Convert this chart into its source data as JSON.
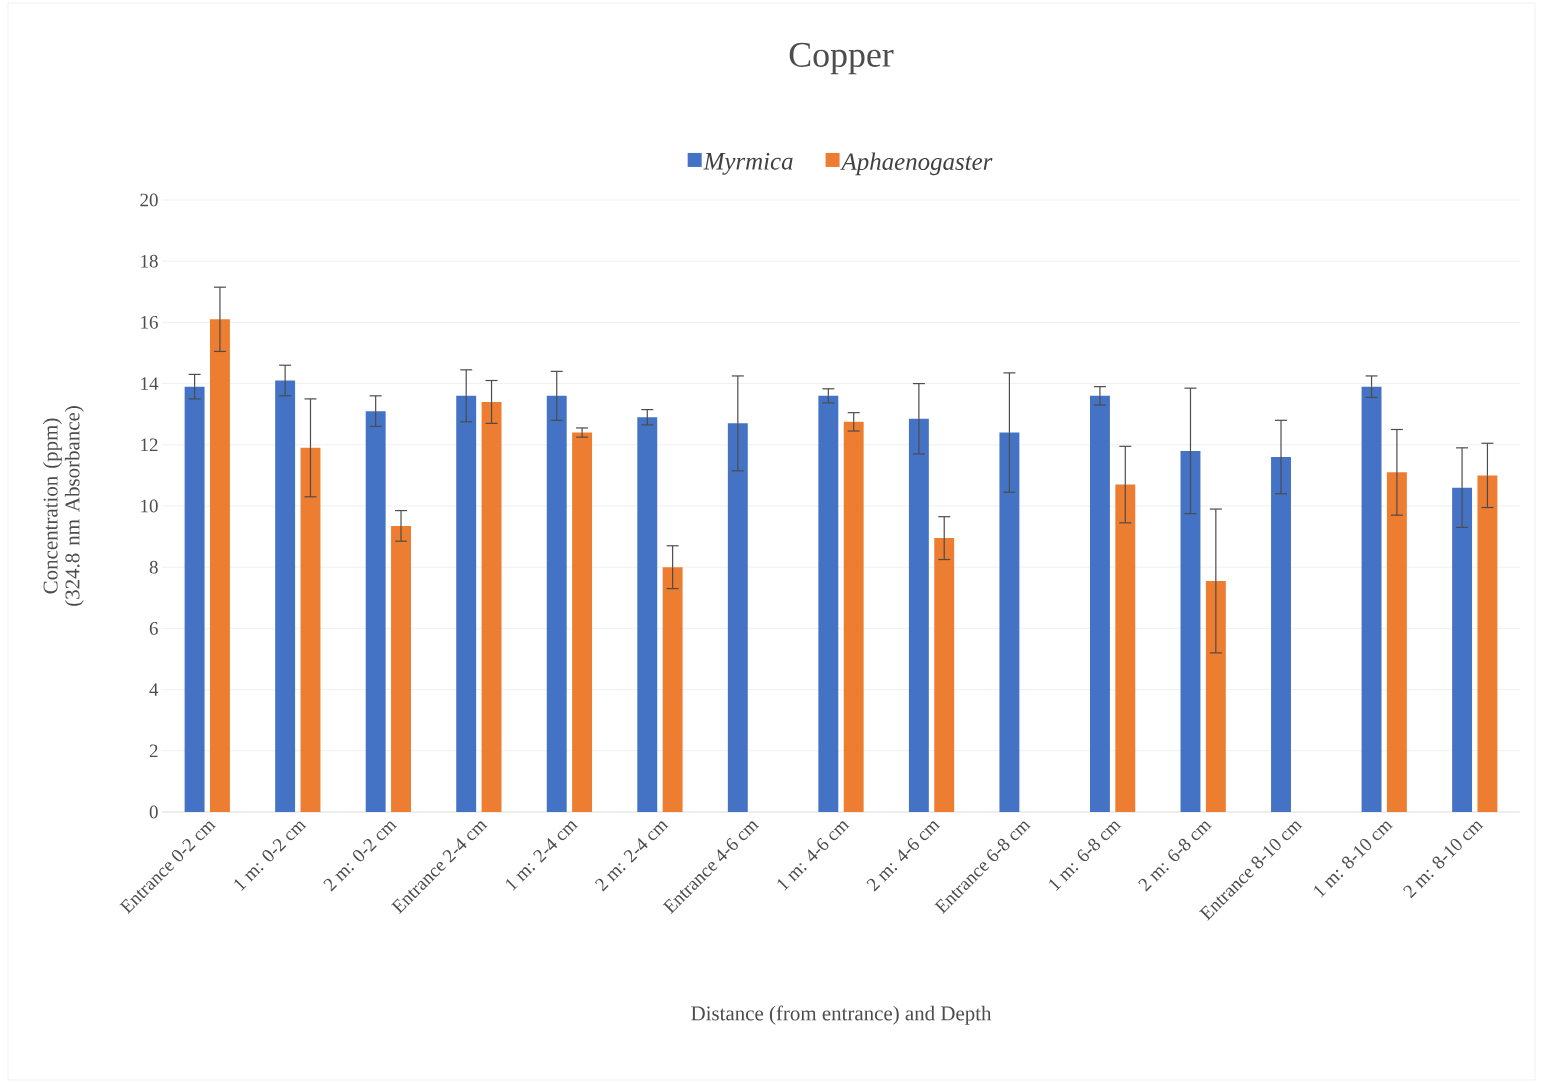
{
  "chart_data": {
    "type": "bar",
    "title": "Copper",
    "xlabel": "Distance (from entrance) and Depth",
    "ylabel": "Concentration (ppm)\n(324.8 nm Absorbance)",
    "categories": [
      "Entrance  0-2 cm",
      "1  m: 0-2 cm",
      "2  m: 0-2 cm",
      "Entrance  2-4 cm",
      "1  m:  2-4 cm",
      "2  m:  2-4 cm",
      "Entrance  4-6 cm",
      "1  m:  4-6 cm",
      "2  m:  4-6 cm",
      "Entrance  6-8 cm",
      "1  m:  6-8 cm",
      "2  m:  6-8 cm",
      "Entrance  8-10 cm",
      "1  m:  8-10 cm",
      "2  m:  8-10 cm"
    ],
    "series": [
      {
        "name": "Myrmica",
        "color": "#4472c4",
        "values": [
          13.9,
          14.1,
          13.1,
          13.6,
          13.6,
          12.9,
          12.7,
          13.6,
          12.85,
          12.4,
          13.6,
          11.8,
          11.6,
          13.9,
          10.6
        ],
        "errors": [
          0.4,
          0.5,
          0.5,
          0.85,
          0.8,
          0.25,
          1.55,
          0.23,
          1.15,
          1.95,
          0.3,
          2.05,
          1.2,
          0.35,
          1.3
        ]
      },
      {
        "name": "Aphaenogaster",
        "color": "#ed7d31",
        "values": [
          16.1,
          11.9,
          9.35,
          13.4,
          12.4,
          8.0,
          null,
          12.75,
          8.95,
          null,
          10.7,
          7.55,
          null,
          11.1,
          11.0
        ],
        "errors": [
          1.05,
          1.6,
          0.5,
          0.7,
          0.15,
          0.7,
          null,
          0.3,
          0.7,
          null,
          1.25,
          2.35,
          null,
          1.4,
          1.05
        ]
      }
    ],
    "ylim": [
      0,
      20
    ],
    "yticks": [
      0,
      2,
      4,
      6,
      8,
      10,
      12,
      14,
      16,
      18,
      20
    ],
    "grid": "y",
    "legend": "top"
  }
}
